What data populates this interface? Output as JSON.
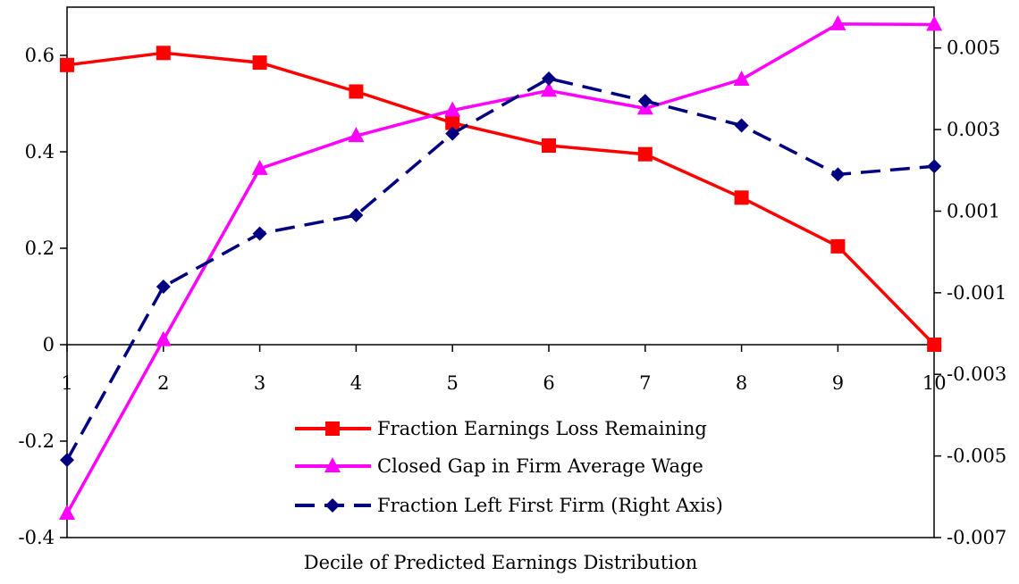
{
  "chart_data": {
    "type": "line",
    "title": "",
    "xlabel": "Decile of Predicted Earnings Distribution",
    "ylabel": "",
    "y2label": "",
    "categories": [
      "1",
      "2",
      "3",
      "4",
      "5",
      "6",
      "7",
      "8",
      "9",
      "10"
    ],
    "ylim": [
      -0.4,
      0.7
    ],
    "yticks": [
      "-0.4",
      "-0.2",
      "0",
      "0.2",
      "0.4",
      "0.6"
    ],
    "y2lim": [
      -0.007,
      0.006
    ],
    "y2ticks": [
      "-0.007",
      "-0.005",
      "-0.003",
      "-0.001",
      "0.001",
      "0.003",
      "0.005"
    ],
    "grid": false,
    "legend_position": "lower-center",
    "series": [
      {
        "name": "Fraction Earnings Loss Remaining",
        "axis": "left",
        "marker": "square",
        "dash": "solid",
        "color": "#ff0000",
        "values": [
          0.58,
          0.605,
          0.585,
          0.525,
          0.46,
          0.413,
          0.395,
          0.305,
          0.204,
          0.0
        ]
      },
      {
        "name": "Closed Gap in Firm Average Wage",
        "axis": "left",
        "marker": "triangle",
        "dash": "solid",
        "color": "#ff00ff",
        "values": [
          -0.35,
          0.01,
          0.365,
          0.433,
          0.486,
          0.527,
          0.49,
          0.55,
          0.665,
          0.664
        ]
      },
      {
        "name": "Fraction Left First Firm (Right Axis)",
        "axis": "right",
        "marker": "diamond",
        "dash": "dashed",
        "color": "#000080",
        "values": [
          -0.0051,
          -0.00085,
          0.00045,
          0.0009,
          0.0029,
          0.00425,
          0.0037,
          0.0031,
          0.0019,
          0.0021
        ]
      }
    ]
  }
}
